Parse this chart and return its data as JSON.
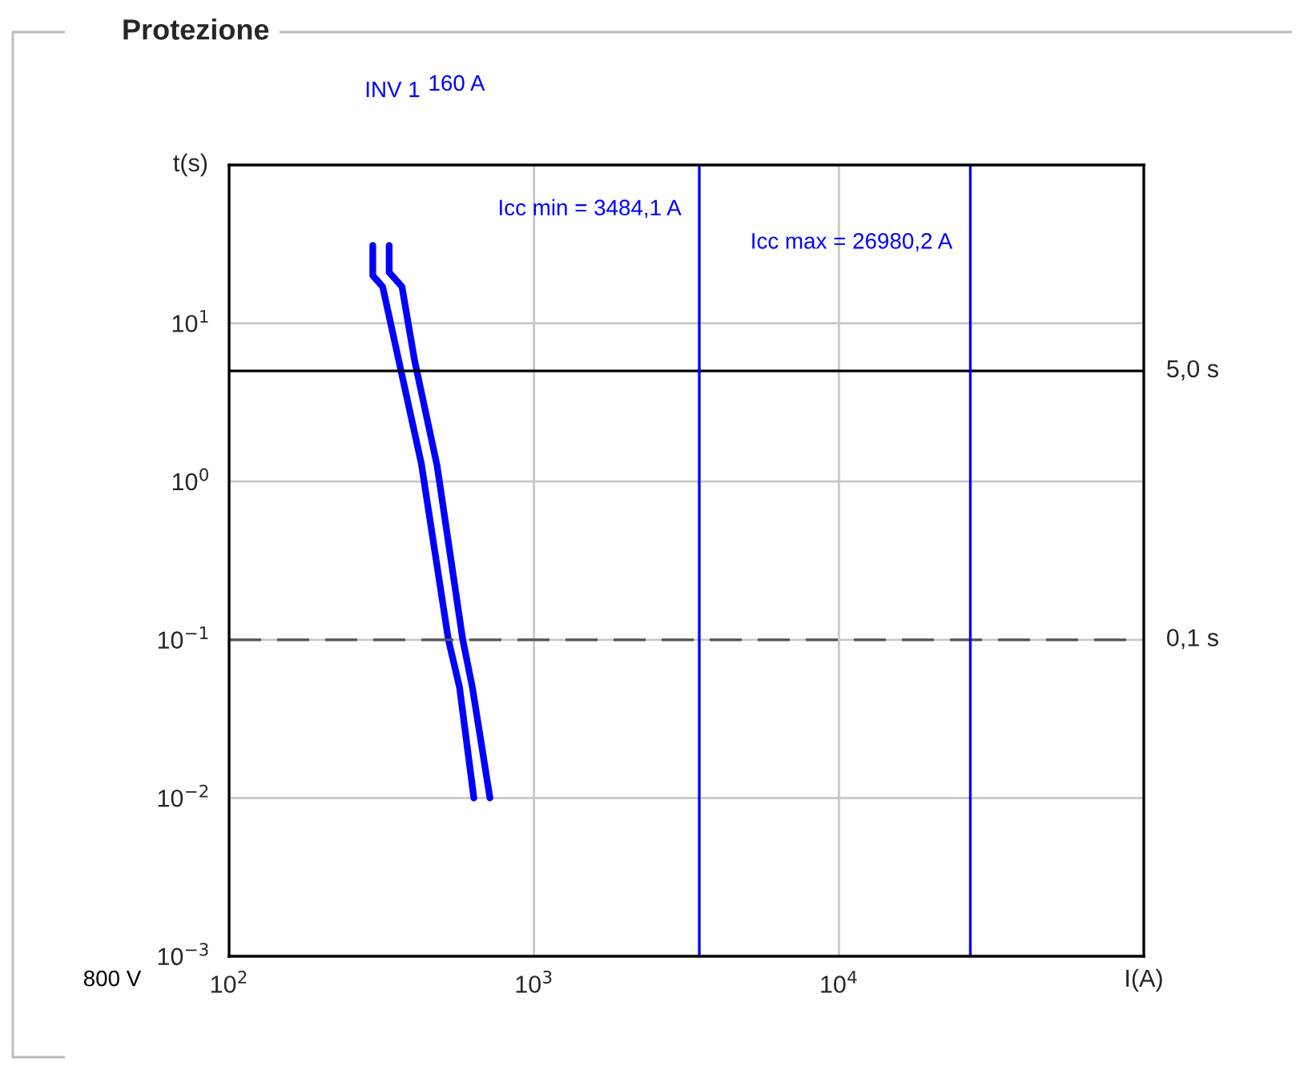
{
  "chart_data": {
    "type": "line",
    "title": "Protezione",
    "ylabel": "t(s)",
    "xlabel": "I(A)",
    "log": "xy",
    "xlim": [
      100,
      100000
    ],
    "ylim": [
      0.001,
      100
    ],
    "xticks": [
      {
        "value": 100,
        "label": "10$^{2}$"
      },
      {
        "value": 1000,
        "label": "10$^{3}$"
      },
      {
        "value": 10000,
        "label": "10$^{4}$"
      }
    ],
    "yticks": [
      {
        "value": 0.001,
        "label": "10$^{−3}$"
      },
      {
        "value": 0.01,
        "label": "10$^{−2}$"
      },
      {
        "value": 0.1,
        "label": "10$^{−1}$"
      },
      {
        "value": 1,
        "label": "10$^{0}$"
      },
      {
        "value": 10,
        "label": "10$^{1}$"
      }
    ],
    "grid": true,
    "marker": "none",
    "line_style": "solid",
    "series": [
      {
        "color": "#0000ff",
        "x": [
          296,
          296,
          319,
          364,
          427,
          524,
          570,
          635
        ],
        "values": [
          31,
          20,
          17,
          5.3,
          1.3,
          0.1,
          0.05,
          0.01
        ]
      },
      {
        "color": "#0000ff",
        "x": [
          335,
          335,
          369,
          406,
          481,
          584,
          628,
          717
        ],
        "values": [
          31,
          21,
          17,
          5.8,
          1.26,
          0.1,
          0.05,
          0.01
        ]
      }
    ],
    "ref_lines": [
      {
        "axis": "y",
        "value": 5,
        "label": "5,0 s",
        "color": "#000000",
        "line_style": "solid"
      },
      {
        "axis": "y",
        "value": 0.1,
        "label": "0,1 s",
        "color": "#555555",
        "line_style": "dashed"
      },
      {
        "axis": "x",
        "value": 3484.1,
        "label": "Icc min = 3484,1 A",
        "color": "#0000ff",
        "line_style": "solid"
      },
      {
        "axis": "x",
        "value": 26980.2,
        "label": "Icc max = 26980,2 A",
        "color": "#0000ff",
        "line_style": "solid"
      }
    ],
    "annotations": [
      "160 A",
      "INV 1",
      "800 V"
    ]
  }
}
